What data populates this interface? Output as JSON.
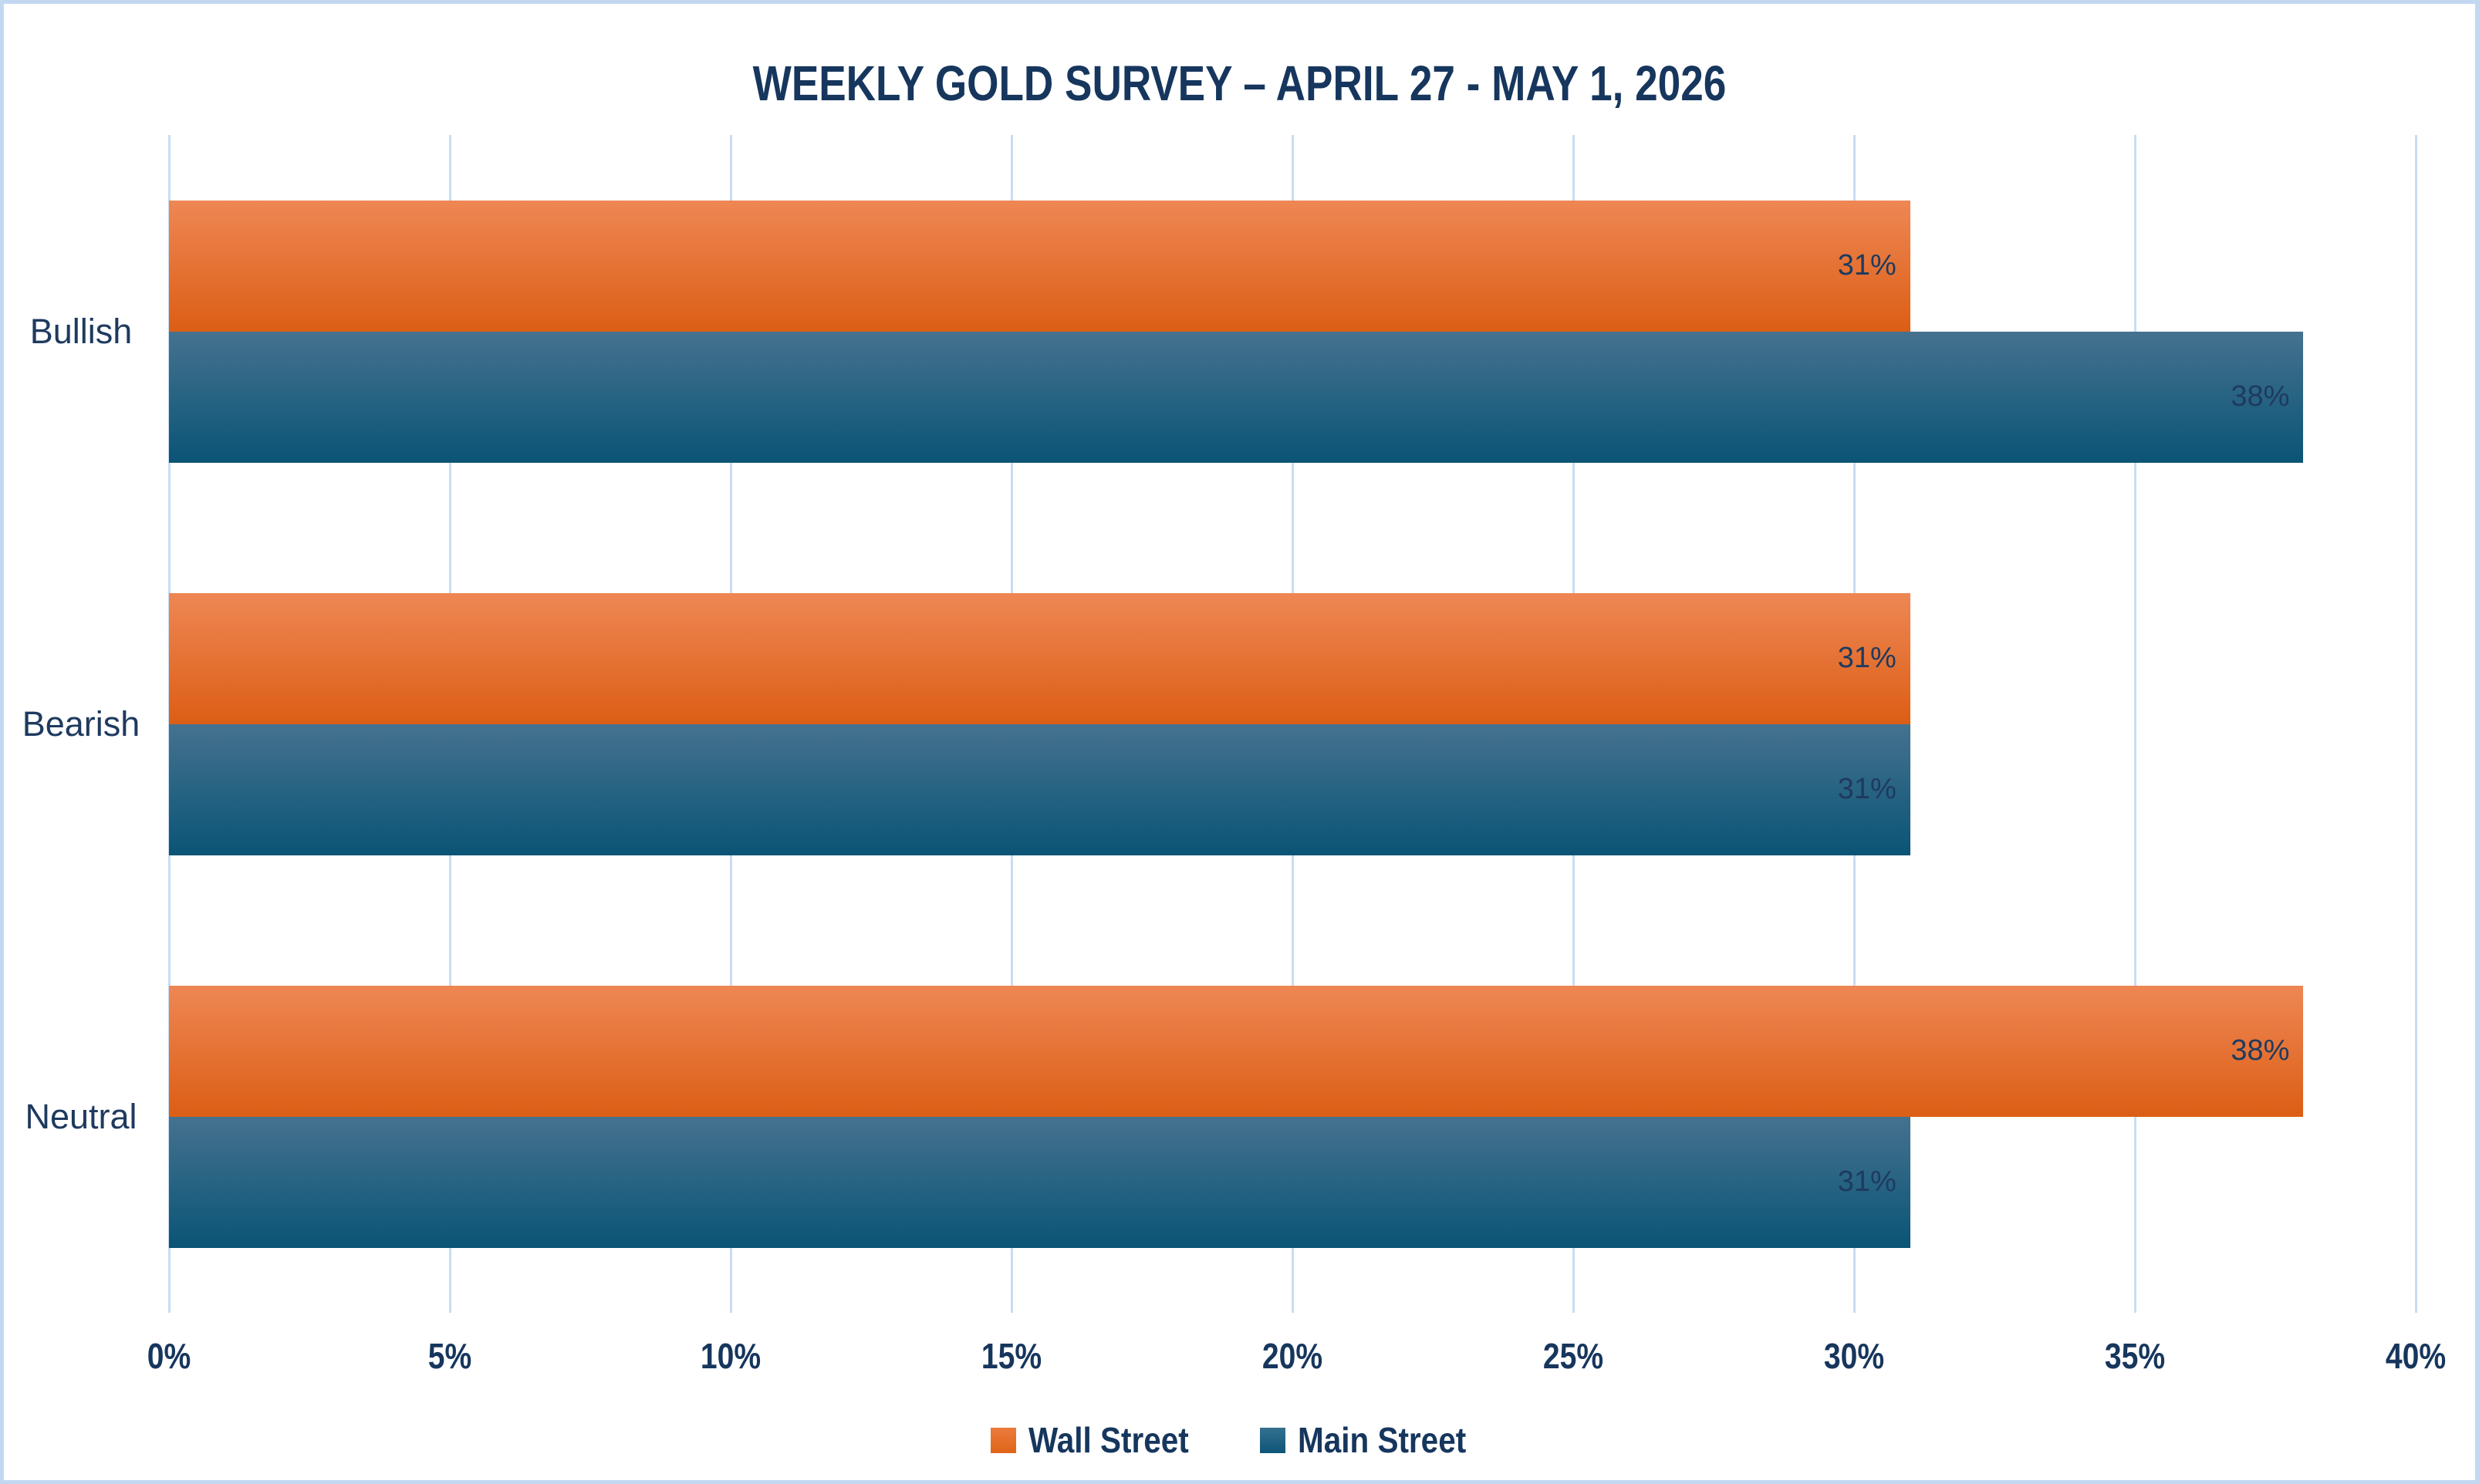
{
  "title": "WEEKLY GOLD SURVEY – APRIL 27 - MAY 1, 2026",
  "colors": {
    "title_text": "#16365D",
    "label_text": "#1E3A5F",
    "frame_border": "#C3D8F0",
    "gridline": "#C9DCF2",
    "wall_street_gradient_top": "#EE8754",
    "wall_street_gradient_bottom": "#DC5E15",
    "main_street_gradient_top": "#45728F",
    "main_street_gradient_bottom": "#0A5476"
  },
  "chart_data": {
    "type": "bar",
    "orientation": "horizontal",
    "title": "WEEKLY GOLD SURVEY – APRIL 27 - MAY 1, 2026",
    "categories": [
      "Bullish",
      "Bearish",
      "Neutral"
    ],
    "series": [
      {
        "name": "Wall Street",
        "color": "#E06418",
        "values": [
          31,
          31,
          38
        ]
      },
      {
        "name": "Main Street",
        "color": "#0E5577",
        "values": [
          38,
          31,
          31
        ]
      }
    ],
    "value_suffix": "%",
    "data_labels": "inside-end",
    "x_axis": {
      "min": 0,
      "max": 40,
      "step": 5,
      "tick_labels": [
        "0%",
        "5%",
        "10%",
        "15%",
        "20%",
        "25%",
        "30%",
        "35%",
        "40%"
      ]
    },
    "grid": "vertical",
    "legend_position": "bottom"
  },
  "legend": {
    "items": [
      {
        "label": "Wall Street"
      },
      {
        "label": "Main Street"
      }
    ]
  }
}
